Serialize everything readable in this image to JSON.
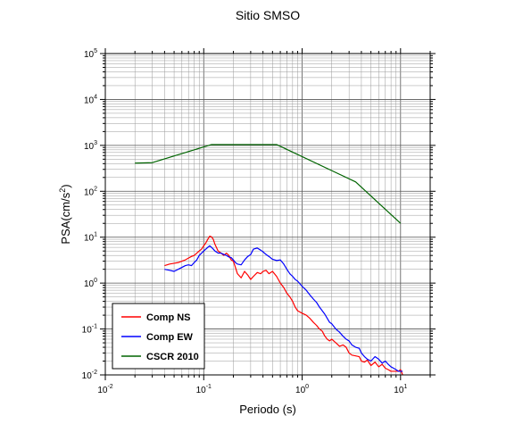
{
  "chart_data": {
    "type": "line",
    "title": "Sitio SMSO",
    "xlabel": "Periodo (s)",
    "ylabel": "PSA(cm/s²)",
    "ylabel_base": "PSA(cm/s",
    "ylabel_sup": "2",
    "ylabel_tail": ")",
    "xscale": "log",
    "yscale": "log",
    "xlim": [
      0.01,
      20
    ],
    "ylim": [
      0.01,
      100000
    ],
    "grid": true,
    "legend_position": "bottom-left",
    "x_ticks": [
      {
        "base": "10",
        "exp": "-2"
      },
      {
        "base": "10",
        "exp": "-1"
      },
      {
        "base": "10",
        "exp": "0"
      },
      {
        "base": "10",
        "exp": "1"
      }
    ],
    "y_ticks": [
      {
        "base": "10",
        "exp": "-2"
      },
      {
        "base": "10",
        "exp": "-1"
      },
      {
        "base": "10",
        "exp": "0"
      },
      {
        "base": "10",
        "exp": "1"
      },
      {
        "base": "10",
        "exp": "2"
      },
      {
        "base": "10",
        "exp": "3"
      },
      {
        "base": "10",
        "exp": "4"
      },
      {
        "base": "10",
        "exp": "5"
      }
    ],
    "series": [
      {
        "name": "Comp NS",
        "color": "#ff0000",
        "x": [
          0.04,
          0.045,
          0.05,
          0.055,
          0.06,
          0.065,
          0.07,
          0.075,
          0.08,
          0.085,
          0.09,
          0.095,
          0.1,
          0.105,
          0.11,
          0.115,
          0.12,
          0.125,
          0.13,
          0.14,
          0.15,
          0.16,
          0.17,
          0.18,
          0.19,
          0.2,
          0.21,
          0.22,
          0.24,
          0.26,
          0.28,
          0.3,
          0.32,
          0.35,
          0.38,
          0.4,
          0.43,
          0.46,
          0.5,
          0.55,
          0.6,
          0.65,
          0.7,
          0.75,
          0.8,
          0.85,
          0.9,
          1.0,
          1.1,
          1.2,
          1.3,
          1.4,
          1.5,
          1.6,
          1.7,
          1.8,
          1.9,
          2.0,
          2.2,
          2.4,
          2.6,
          2.8,
          3.0,
          3.2,
          3.5,
          3.8,
          4.0,
          4.3,
          4.6,
          5.0,
          5.5,
          6.0,
          6.5,
          7.0,
          7.5,
          8.0,
          8.5,
          9.0,
          9.5,
          10.0,
          10.5
        ],
        "y": [
          2.4,
          2.6,
          2.7,
          2.8,
          3.0,
          3.2,
          3.5,
          3.8,
          4.0,
          4.5,
          5.0,
          5.5,
          6.5,
          7.5,
          9.0,
          10.5,
          10.2,
          9.0,
          7.0,
          5.0,
          4.5,
          4.0,
          4.5,
          4.0,
          3.2,
          3.0,
          2.2,
          1.6,
          1.3,
          1.8,
          1.5,
          1.2,
          1.4,
          1.7,
          1.6,
          1.8,
          1.9,
          1.6,
          1.8,
          1.4,
          1.0,
          0.8,
          0.6,
          0.5,
          0.4,
          0.3,
          0.25,
          0.22,
          0.2,
          0.17,
          0.14,
          0.12,
          0.1,
          0.09,
          0.07,
          0.06,
          0.055,
          0.06,
          0.05,
          0.042,
          0.045,
          0.04,
          0.03,
          0.027,
          0.026,
          0.025,
          0.02,
          0.019,
          0.021,
          0.016,
          0.019,
          0.015,
          0.017,
          0.014,
          0.013,
          0.012,
          0.012,
          0.012,
          0.012,
          0.013,
          0.01
        ]
      },
      {
        "name": "Comp EW",
        "color": "#0000ff",
        "x": [
          0.04,
          0.045,
          0.05,
          0.055,
          0.06,
          0.065,
          0.07,
          0.075,
          0.08,
          0.085,
          0.09,
          0.095,
          0.1,
          0.105,
          0.11,
          0.115,
          0.12,
          0.125,
          0.13,
          0.14,
          0.15,
          0.16,
          0.17,
          0.18,
          0.19,
          0.2,
          0.21,
          0.22,
          0.24,
          0.26,
          0.28,
          0.3,
          0.32,
          0.35,
          0.38,
          0.4,
          0.43,
          0.46,
          0.5,
          0.55,
          0.6,
          0.65,
          0.7,
          0.75,
          0.8,
          0.85,
          0.9,
          1.0,
          1.1,
          1.2,
          1.3,
          1.4,
          1.5,
          1.6,
          1.7,
          1.8,
          1.9,
          2.0,
          2.2,
          2.4,
          2.6,
          2.8,
          3.0,
          3.2,
          3.5,
          3.8,
          4.0,
          4.3,
          4.6,
          5.0,
          5.5,
          6.0,
          6.5,
          7.0,
          7.5,
          8.0,
          8.5,
          9.0,
          9.5,
          10.0,
          10.5
        ],
        "y": [
          2.0,
          1.9,
          1.8,
          2.0,
          2.2,
          2.4,
          2.5,
          2.4,
          2.8,
          3.2,
          4.0,
          4.5,
          5.0,
          5.5,
          6.0,
          6.5,
          6.0,
          5.5,
          5.0,
          4.5,
          4.5,
          4.2,
          4.0,
          3.7,
          3.6,
          3.2,
          2.8,
          2.6,
          2.5,
          3.2,
          3.8,
          4.2,
          5.5,
          5.8,
          5.2,
          4.8,
          4.2,
          3.8,
          3.3,
          3.1,
          3.2,
          2.6,
          2.0,
          1.6,
          1.4,
          1.2,
          1.1,
          0.85,
          0.7,
          0.55,
          0.45,
          0.38,
          0.3,
          0.25,
          0.21,
          0.17,
          0.14,
          0.13,
          0.1,
          0.085,
          0.07,
          0.06,
          0.055,
          0.045,
          0.04,
          0.038,
          0.03,
          0.025,
          0.022,
          0.02,
          0.025,
          0.022,
          0.018,
          0.02,
          0.017,
          0.015,
          0.014,
          0.013,
          0.012,
          0.012,
          0.012
        ]
      },
      {
        "name": "CSCR 2010",
        "color": "#006400",
        "x": [
          0.02,
          0.03,
          0.12,
          0.55,
          3.5,
          10.0
        ],
        "y": [
          410,
          420,
          1040,
          1040,
          160,
          20
        ]
      }
    ]
  }
}
